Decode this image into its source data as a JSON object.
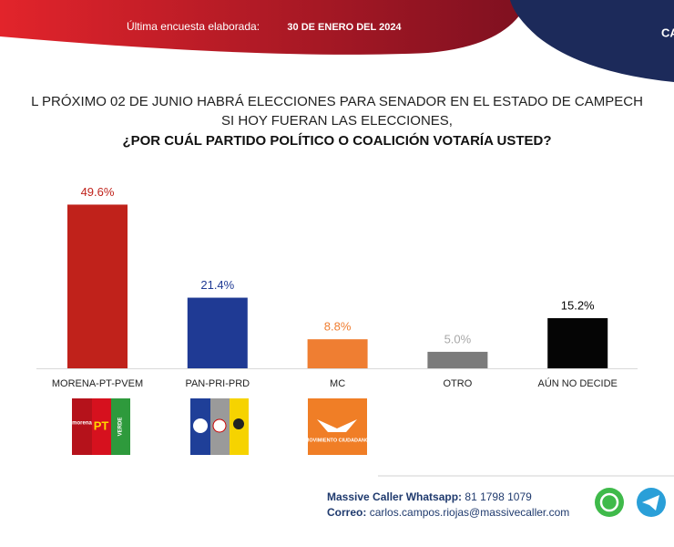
{
  "chart_data": {
    "type": "bar",
    "title_lines": [
      "L PRÓXIMO 02 DE JUNIO HABRÁ ELECCIONES PARA SENADOR EN EL ESTADO DE CAMPECH",
      "SI HOY FUERAN LAS ELECCIONES,",
      "¿POR CUÁL PARTIDO POLÍTICO O COALICIÓN VOTARÍA USTED?"
    ],
    "categories": [
      "MORENA-PT-PVEM",
      "PAN-PRI-PRD",
      "MC",
      "OTRO",
      "AÚN NO DECIDE"
    ],
    "values": [
      49.6,
      21.4,
      8.8,
      5.0,
      15.2
    ],
    "value_labels": [
      "49.6%",
      "21.4%",
      "8.8%",
      "5.0%",
      "15.2%"
    ],
    "colors": [
      "#c0221b",
      "#1f3a94",
      "#ef7e32",
      "#7b7b7b",
      "#050505"
    ],
    "label_colors": [
      "#c0221b",
      "#1f3a94",
      "#ef7e32",
      "#a8a8a8",
      "#050505"
    ]
  },
  "header": {
    "survey_label": "Última encuesta elaborada:",
    "date": "30 DE ENERO DEL 2024",
    "corner": "CA"
  },
  "logos": {
    "morena": "morena",
    "pt": "PT",
    "verde": "VERDE",
    "mc": "MOVIMIENTO CIUDADANO"
  },
  "footer": {
    "whatsapp_label": "Massive Caller Whatsapp:",
    "whatsapp": "81 1798 1079",
    "email_label": "Correo:",
    "email": "carlos.campos.riojas@massivecaller.com"
  }
}
